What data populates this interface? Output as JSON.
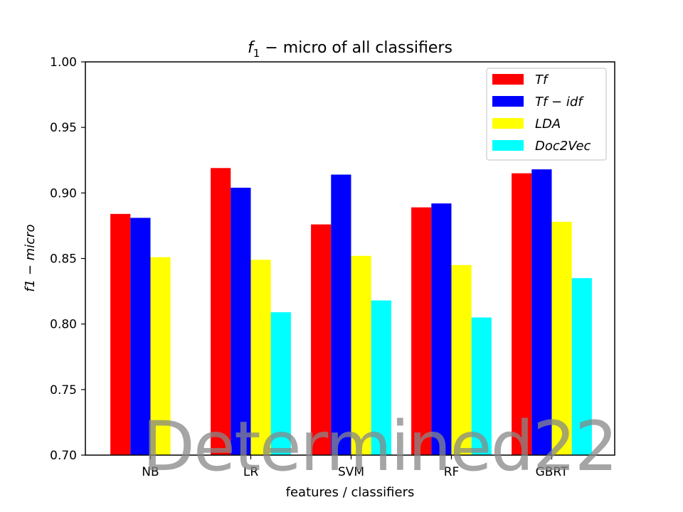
{
  "chart_data": {
    "type": "bar",
    "title_prefix": "f",
    "title_subscript": "1",
    "title_rest": " − micro of all classifiers",
    "xlabel": "features / classifiers",
    "ylabel": "f1 − micro",
    "ylim": [
      0.7,
      1.0
    ],
    "yticks": [
      "0.70",
      "0.75",
      "0.80",
      "0.85",
      "0.90",
      "0.95",
      "1.00"
    ],
    "categories": [
      "NB",
      "LR",
      "SVM",
      "RF",
      "GBRT"
    ],
    "legend_position": "top-right",
    "series": [
      {
        "name": "Tf",
        "color": "#ff0000",
        "values": [
          0.884,
          0.919,
          0.876,
          0.889,
          0.915
        ]
      },
      {
        "name": "Tf − idf",
        "color": "#0000ff",
        "values": [
          0.881,
          0.904,
          0.914,
          0.892,
          0.918
        ]
      },
      {
        "name": "LDA",
        "color": "#ffff00",
        "values": [
          0.851,
          0.849,
          0.852,
          0.845,
          0.878
        ]
      },
      {
        "name": "Doc2Vec",
        "color": "#00ffff",
        "values": [
          null,
          0.809,
          0.818,
          0.805,
          0.835
        ]
      }
    ]
  },
  "watermark": "Determined22"
}
